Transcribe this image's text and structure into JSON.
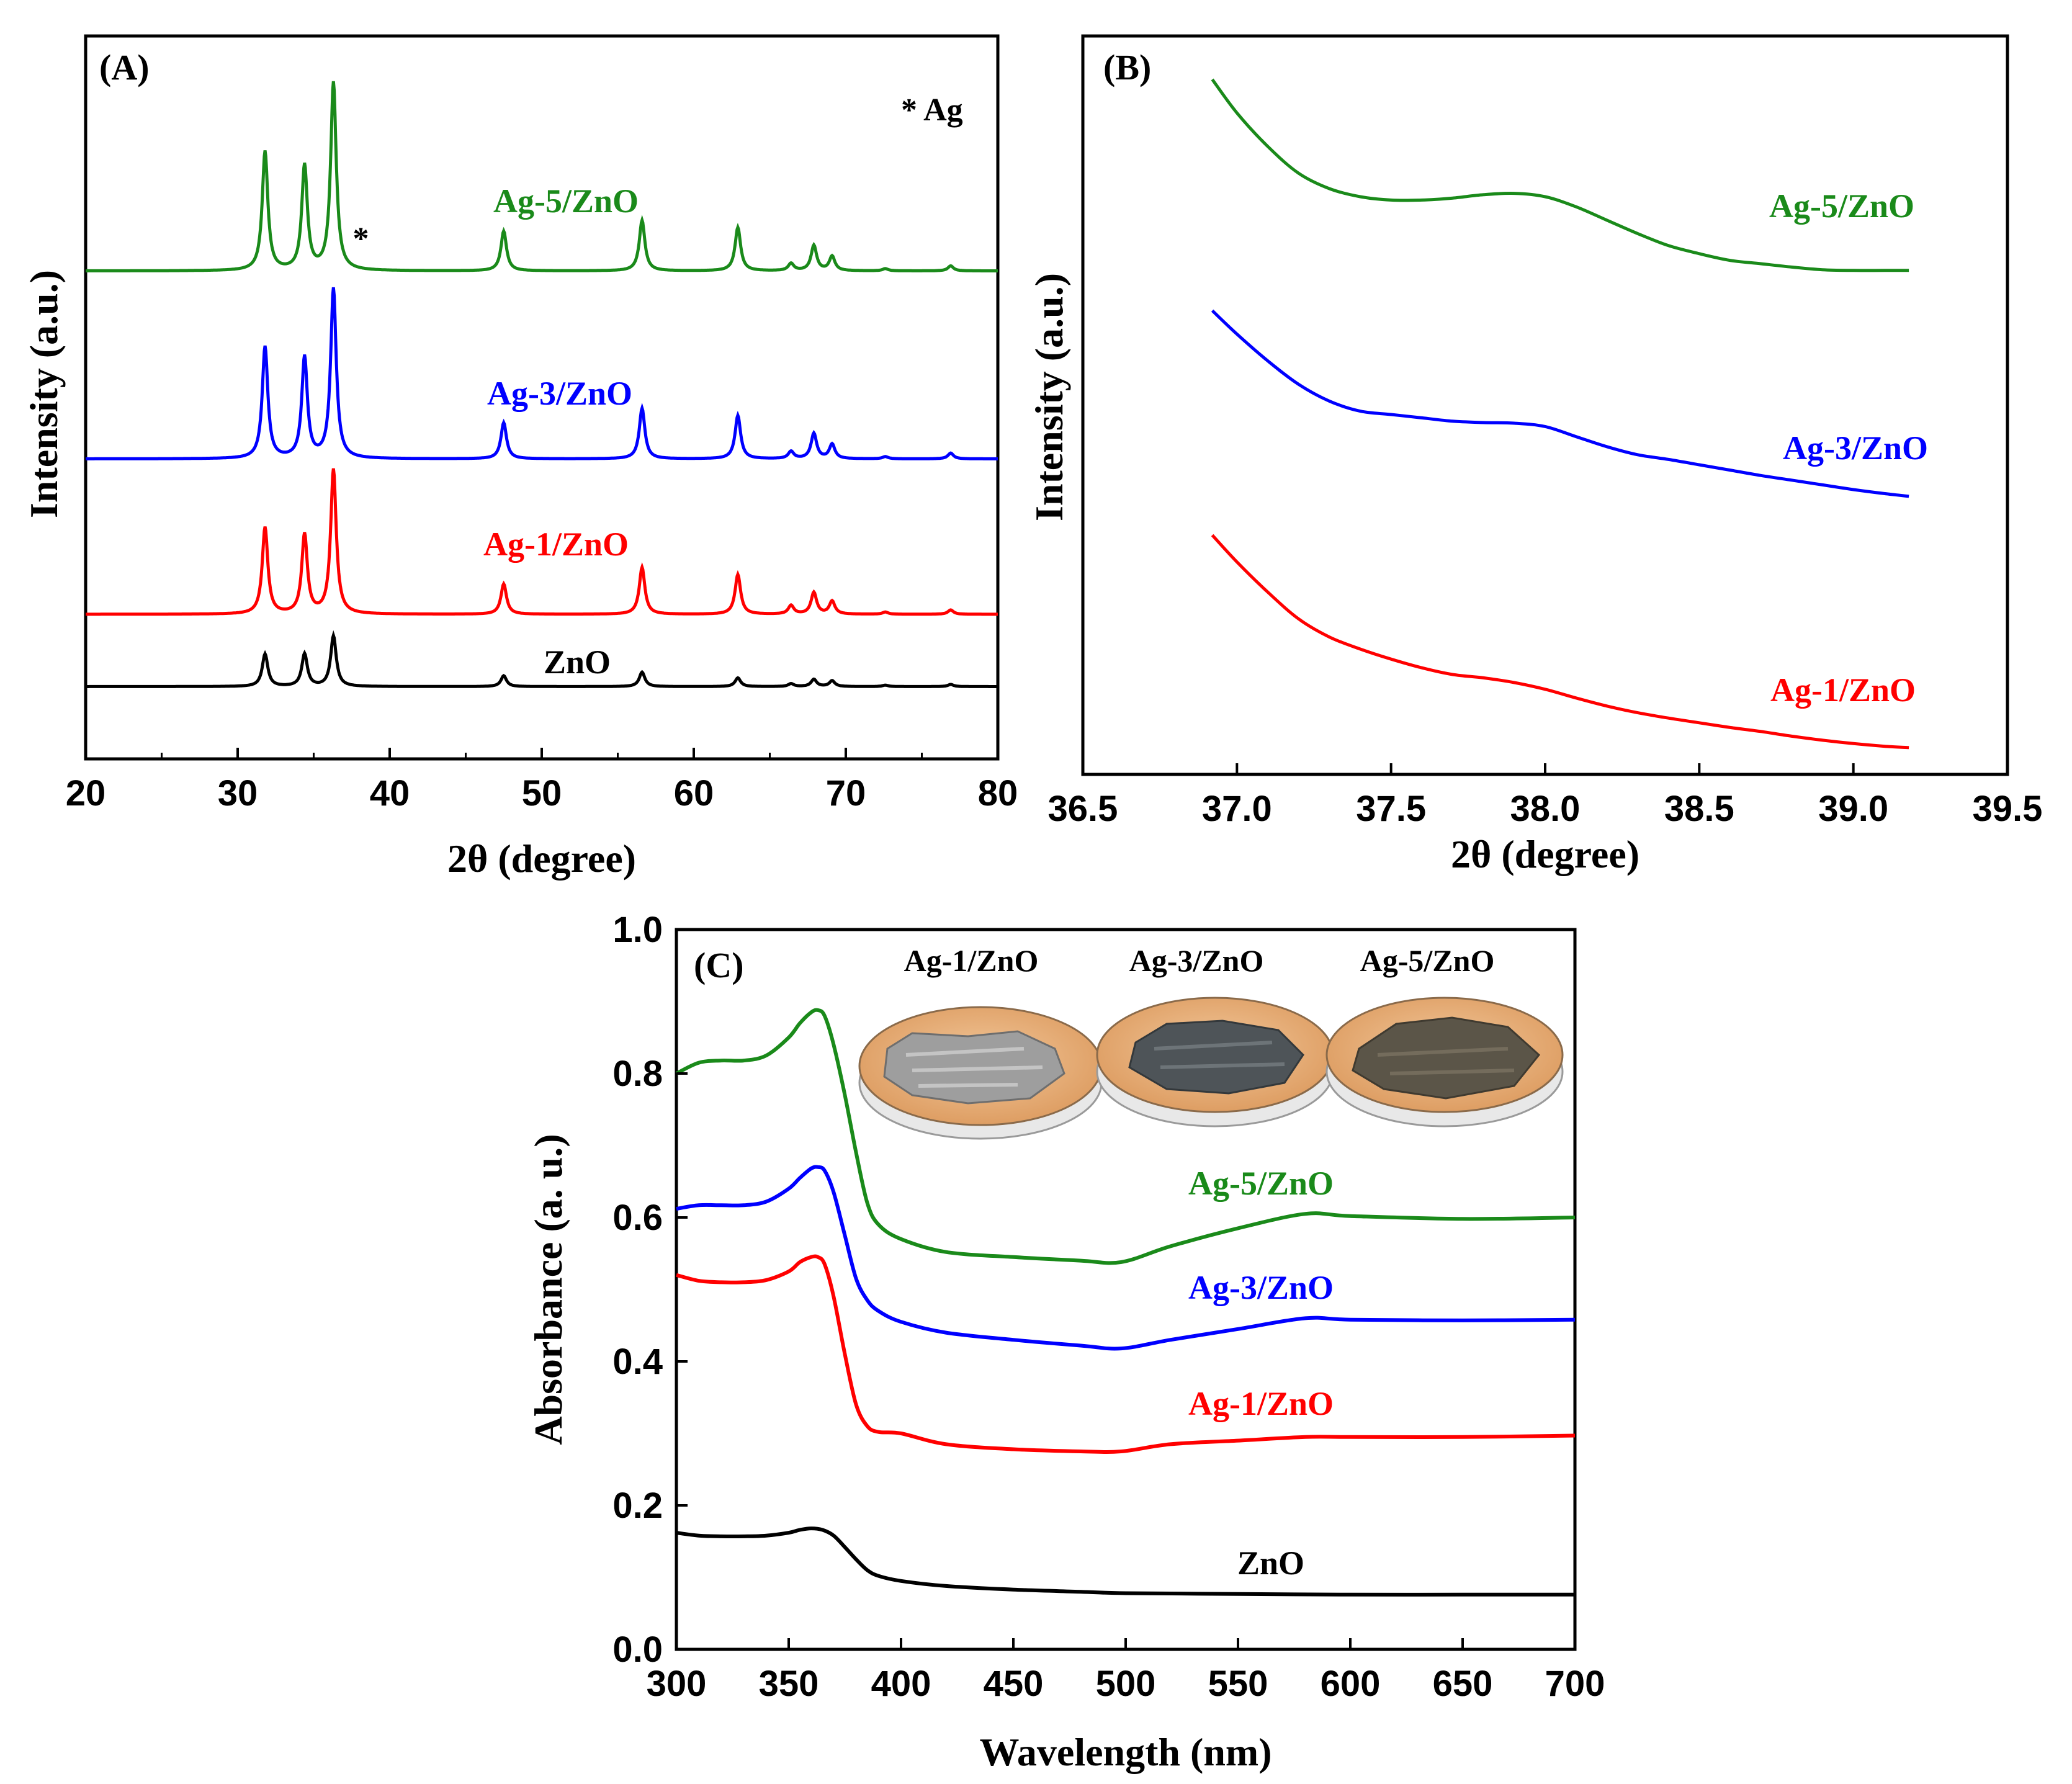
{
  "chart_data": [
    {
      "panel": "(A)",
      "type": "line",
      "xlabel": "2θ (degree)",
      "ylabel": "Intensity (a.u.)",
      "xlim": [
        20,
        80
      ],
      "xticks": [
        20,
        30,
        40,
        50,
        60,
        70,
        80
      ],
      "annotation": "* Ag",
      "ag_marker": {
        "symbol": "*",
        "x": 38.1,
        "series": "Ag-5/ZnO"
      },
      "peaks_2theta": [
        31.8,
        34.4,
        36.3,
        47.5,
        56.6,
        62.9,
        66.4,
        67.9,
        69.1,
        72.6,
        76.9
      ],
      "series": [
        {
          "name": "ZnO",
          "color": "#000000",
          "baseline": 0.1,
          "peak_heights": [
            0.045,
            0.045,
            0.07,
            0.015,
            0.02,
            0.012,
            0.004,
            0.01,
            0.008,
            0.002,
            0.003
          ]
        },
        {
          "name": "Ag-1/ZnO",
          "color": "#ff0000",
          "baseline": 0.2,
          "peak_heights": [
            0.12,
            0.11,
            0.2,
            0.042,
            0.065,
            0.055,
            0.012,
            0.03,
            0.018,
            0.003,
            0.006
          ]
        },
        {
          "name": "Ag-3/ZnO",
          "color": "#0000ff",
          "baseline": 0.415,
          "peak_heights": [
            0.155,
            0.14,
            0.235,
            0.05,
            0.07,
            0.06,
            0.01,
            0.035,
            0.02,
            0.003,
            0.008
          ]
        },
        {
          "name": "Ag-5/ZnO",
          "color": "#1a8a1a",
          "baseline": 0.675,
          "peak_heights": [
            0.165,
            0.145,
            0.26,
            0.055,
            0.07,
            0.06,
            0.01,
            0.035,
            0.02,
            0.003,
            0.007
          ]
        }
      ]
    },
    {
      "panel": "(B)",
      "type": "line",
      "xlabel": "2θ (degree)",
      "ylabel": "Intensity (a.u.)",
      "xlim": [
        36.5,
        39.5
      ],
      "xticks": [
        "36.5",
        "37.0",
        "37.5",
        "38.0",
        "38.5",
        "39.0",
        "39.5"
      ],
      "series": [
        {
          "name": "Ag-5/ZnO",
          "color": "#1a8a1a",
          "x": [
            36.92,
            37.0,
            37.1,
            37.2,
            37.3,
            37.4,
            37.5,
            37.6,
            37.7,
            37.8,
            37.9,
            38.0,
            38.1,
            38.2,
            38.3,
            38.4,
            38.5,
            38.6,
            38.7,
            38.8,
            38.9,
            39.0,
            39.1,
            39.18
          ],
          "y": [
            1.0,
            0.95,
            0.9,
            0.86,
            0.837,
            0.825,
            0.82,
            0.82,
            0.823,
            0.828,
            0.83,
            0.825,
            0.81,
            0.79,
            0.77,
            0.752,
            0.74,
            0.73,
            0.725,
            0.72,
            0.716,
            0.715,
            0.715,
            0.715
          ]
        },
        {
          "name": "Ag-3/ZnO",
          "color": "#0000ff",
          "x": [
            36.92,
            37.0,
            37.1,
            37.2,
            37.3,
            37.4,
            37.5,
            37.6,
            37.7,
            37.8,
            37.9,
            38.0,
            38.1,
            38.2,
            38.3,
            38.4,
            38.5,
            38.6,
            38.7,
            38.8,
            38.9,
            39.0,
            39.1,
            39.18
          ],
          "y": [
            0.655,
            0.62,
            0.58,
            0.545,
            0.52,
            0.505,
            0.5,
            0.495,
            0.49,
            0.488,
            0.487,
            0.482,
            0.467,
            0.452,
            0.44,
            0.433,
            0.425,
            0.417,
            0.409,
            0.402,
            0.395,
            0.388,
            0.382,
            0.378
          ]
        },
        {
          "name": "Ag-1/ZnO",
          "color": "#ff0000",
          "x": [
            36.92,
            37.0,
            37.1,
            37.2,
            37.3,
            37.4,
            37.5,
            37.6,
            37.7,
            37.8,
            37.9,
            38.0,
            38.1,
            38.2,
            38.3,
            38.4,
            38.5,
            38.6,
            38.7,
            38.8,
            38.9,
            39.0,
            39.1,
            39.18
          ],
          "y": [
            0.32,
            0.28,
            0.235,
            0.195,
            0.168,
            0.15,
            0.135,
            0.122,
            0.112,
            0.107,
            0.1,
            0.09,
            0.077,
            0.065,
            0.055,
            0.047,
            0.04,
            0.033,
            0.027,
            0.02,
            0.014,
            0.009,
            0.005,
            0.003
          ]
        }
      ]
    },
    {
      "panel": "(C)",
      "type": "line",
      "xlabel": "Wavelength (nm)",
      "ylabel": "Absorbance (a. u.)",
      "xlim": [
        300,
        700
      ],
      "ylim": [
        0.0,
        1.0
      ],
      "xticks": [
        300,
        350,
        400,
        450,
        500,
        550,
        600,
        650,
        700
      ],
      "yticks": [
        "0.0",
        "0.2",
        "0.4",
        "0.6",
        "0.8",
        "1.0"
      ],
      "inset_labels": [
        "Ag-1/ZnO",
        "Ag-3/ZnO",
        "Ag-5/ZnO"
      ],
      "series": [
        {
          "name": "Ag-5/ZnO",
          "color": "#1a8a1a",
          "x": [
            300,
            310,
            320,
            330,
            340,
            350,
            355,
            360,
            363,
            366,
            370,
            375,
            380,
            385,
            390,
            400,
            420,
            450,
            480,
            498,
            520,
            550,
            580,
            600,
            650,
            700
          ],
          "y": [
            0.8,
            0.815,
            0.818,
            0.818,
            0.825,
            0.85,
            0.87,
            0.885,
            0.888,
            0.88,
            0.84,
            0.77,
            0.69,
            0.62,
            0.59,
            0.57,
            0.552,
            0.545,
            0.54,
            0.538,
            0.56,
            0.585,
            0.605,
            0.602,
            0.598,
            0.6
          ]
        },
        {
          "name": "Ag-3/ZnO",
          "color": "#0000ff",
          "x": [
            300,
            310,
            320,
            330,
            340,
            350,
            355,
            360,
            363,
            366,
            370,
            375,
            380,
            385,
            390,
            400,
            420,
            450,
            480,
            498,
            520,
            550,
            580,
            600,
            650,
            700
          ],
          "y": [
            0.612,
            0.617,
            0.617,
            0.617,
            0.622,
            0.64,
            0.655,
            0.668,
            0.67,
            0.665,
            0.635,
            0.575,
            0.515,
            0.485,
            0.47,
            0.455,
            0.44,
            0.43,
            0.422,
            0.418,
            0.43,
            0.445,
            0.46,
            0.458,
            0.457,
            0.458
          ]
        },
        {
          "name": "Ag-1/ZnO",
          "color": "#ff0000",
          "x": [
            300,
            310,
            320,
            330,
            340,
            350,
            355,
            360,
            363,
            366,
            370,
            375,
            380,
            385,
            390,
            400,
            420,
            450,
            480,
            498,
            520,
            550,
            580,
            600,
            650,
            700
          ],
          "y": [
            0.52,
            0.512,
            0.51,
            0.51,
            0.513,
            0.525,
            0.538,
            0.545,
            0.545,
            0.535,
            0.49,
            0.41,
            0.34,
            0.31,
            0.302,
            0.3,
            0.285,
            0.278,
            0.275,
            0.275,
            0.285,
            0.29,
            0.295,
            0.295,
            0.295,
            0.297
          ]
        },
        {
          "name": "ZnO",
          "color": "#000000",
          "x": [
            300,
            310,
            320,
            330,
            340,
            350,
            355,
            360,
            365,
            370,
            375,
            380,
            385,
            390,
            400,
            420,
            450,
            480,
            500,
            550,
            600,
            650,
            700
          ],
          "y": [
            0.162,
            0.158,
            0.157,
            0.157,
            0.158,
            0.162,
            0.166,
            0.168,
            0.166,
            0.158,
            0.142,
            0.125,
            0.11,
            0.102,
            0.095,
            0.088,
            0.083,
            0.08,
            0.078,
            0.077,
            0.076,
            0.076,
            0.076
          ]
        }
      ]
    }
  ]
}
